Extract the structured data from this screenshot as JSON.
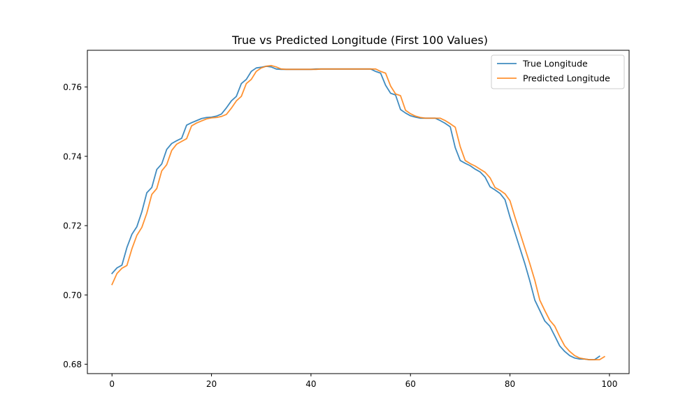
{
  "chart_data": {
    "type": "line",
    "title": "True vs Predicted Longitude (First 100 Values)",
    "xlabel": "",
    "ylabel": "",
    "xlim": [
      -4.95,
      103.95
    ],
    "ylim": [
      0.6773,
      0.7706
    ],
    "x_ticks": [
      0,
      20,
      40,
      60,
      80,
      100
    ],
    "y_ticks": [
      0.68,
      0.7,
      0.72,
      0.74,
      0.76
    ],
    "x_tick_labels": [
      "0",
      "20",
      "40",
      "60",
      "80",
      "100"
    ],
    "y_tick_labels": [
      "0.68",
      "0.70",
      "0.72",
      "0.74",
      "0.76"
    ],
    "grid": false,
    "legend_position": "top-right",
    "series": [
      {
        "name": "True Longitude",
        "color": "#1f77b4",
        "x_start": 0,
        "values": [
          0.7062,
          0.7078,
          0.7086,
          0.7137,
          0.7175,
          0.7197,
          0.724,
          0.7295,
          0.731,
          0.7362,
          0.7378,
          0.742,
          0.7437,
          0.7445,
          0.7452,
          0.749,
          0.7497,
          0.7503,
          0.7509,
          0.7512,
          0.7513,
          0.7516,
          0.7522,
          0.754,
          0.756,
          0.7573,
          0.761,
          0.7622,
          0.7645,
          0.7655,
          0.7657,
          0.766,
          0.7658,
          0.7652,
          0.7651,
          0.7651,
          0.7651,
          0.7651,
          0.7651,
          0.7651,
          0.7651,
          0.7652,
          0.7652,
          0.7652,
          0.7652,
          0.7652,
          0.7652,
          0.7652,
          0.7652,
          0.7652,
          0.7652,
          0.7652,
          0.7652,
          0.7645,
          0.764,
          0.7605,
          0.7582,
          0.7577,
          0.7535,
          0.7525,
          0.7517,
          0.7513,
          0.751,
          0.751,
          0.751,
          0.751,
          0.7503,
          0.7495,
          0.7485,
          0.7425,
          0.7388,
          0.738,
          0.7373,
          0.7363,
          0.7355,
          0.734,
          0.7312,
          0.7303,
          0.7293,
          0.7275,
          0.7225,
          0.718,
          0.7135,
          0.709,
          0.704,
          0.6985,
          0.6955,
          0.6925,
          0.691,
          0.6882,
          0.6853,
          0.6837,
          0.6825,
          0.6818,
          0.6815,
          0.6815,
          0.6813,
          0.6813,
          0.6823
        ]
      },
      {
        "name": "Predicted Longitude",
        "color": "#ff7f0e",
        "x_start": 0,
        "values": [
          0.703,
          0.7062,
          0.7077,
          0.7085,
          0.7133,
          0.7172,
          0.7195,
          0.7236,
          0.729,
          0.7307,
          0.7358,
          0.7376,
          0.7417,
          0.7435,
          0.7443,
          0.7451,
          0.7488,
          0.7496,
          0.7502,
          0.7508,
          0.7511,
          0.7512,
          0.7515,
          0.7521,
          0.7539,
          0.756,
          0.7573,
          0.761,
          0.7622,
          0.7645,
          0.7655,
          0.766,
          0.7662,
          0.7658,
          0.7652,
          0.7651,
          0.7651,
          0.7651,
          0.7651,
          0.7651,
          0.7651,
          0.7651,
          0.7652,
          0.7652,
          0.7652,
          0.7652,
          0.7652,
          0.7652,
          0.7652,
          0.7652,
          0.7652,
          0.7652,
          0.7652,
          0.7652,
          0.7645,
          0.764,
          0.7603,
          0.758,
          0.7575,
          0.7533,
          0.7523,
          0.7516,
          0.7512,
          0.751,
          0.751,
          0.751,
          0.751,
          0.7503,
          0.7494,
          0.7484,
          0.7428,
          0.7388,
          0.7379,
          0.7372,
          0.7363,
          0.7354,
          0.7338,
          0.731,
          0.7302,
          0.7292,
          0.7272,
          0.7225,
          0.718,
          0.7135,
          0.709,
          0.7042,
          0.6985,
          0.6955,
          0.6927,
          0.691,
          0.688,
          0.6853,
          0.6837,
          0.6825,
          0.6818,
          0.6815,
          0.6813,
          0.6813,
          0.6813,
          0.6822
        ]
      }
    ]
  }
}
